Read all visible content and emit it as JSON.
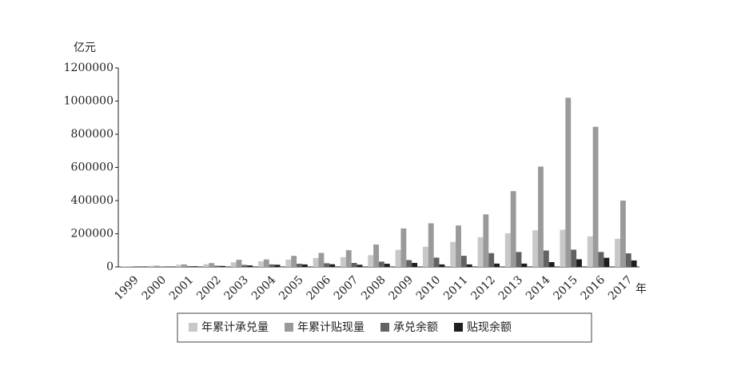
{
  "chart_data": {
    "type": "bar",
    "y_label": "亿元",
    "x_label": "年",
    "categories": [
      "1999",
      "2000",
      "2001",
      "2002",
      "2003",
      "2004",
      "2005",
      "2006",
      "2007",
      "2008",
      "2009",
      "2010",
      "2011",
      "2012",
      "2013",
      "2014",
      "2015",
      "2016",
      "2017"
    ],
    "series": [
      {
        "name": "年累计承兑量",
        "color": "#c8c8c8",
        "values": [
          4000,
          7000,
          13000,
          16000,
          28000,
          34000,
          44000,
          54000,
          59000,
          71000,
          103000,
          122000,
          151000,
          179000,
          203000,
          221000,
          224000,
          184000,
          170000
        ]
      },
      {
        "name": "年累计贴现量",
        "color": "#9a9a9a",
        "values": [
          2500,
          7000,
          15000,
          23000,
          43000,
          45000,
          67000,
          84000,
          101000,
          135000,
          232000,
          263000,
          250000,
          317000,
          457000,
          605000,
          1020000,
          845000,
          400000
        ]
      },
      {
        "name": "承兑余额",
        "color": "#626262",
        "values": [
          1000,
          2000,
          5000,
          7000,
          12000,
          15000,
          19000,
          22000,
          24000,
          32000,
          41000,
          56000,
          67000,
          83000,
          90000,
          99000,
          104000,
          90000,
          82000
        ]
      },
      {
        "name": "贴现余额",
        "color": "#1e1e1e",
        "values": [
          500,
          1500,
          4000,
          6000,
          9000,
          13000,
          15000,
          16000,
          13000,
          19000,
          24000,
          15000,
          15000,
          20000,
          20000,
          29000,
          46000,
          55000,
          39000
        ]
      }
    ],
    "ylim": [
      0,
      1200000
    ],
    "yticks": [
      0,
      200000,
      400000,
      600000,
      800000,
      1000000,
      1200000
    ],
    "legend": "bottom"
  }
}
